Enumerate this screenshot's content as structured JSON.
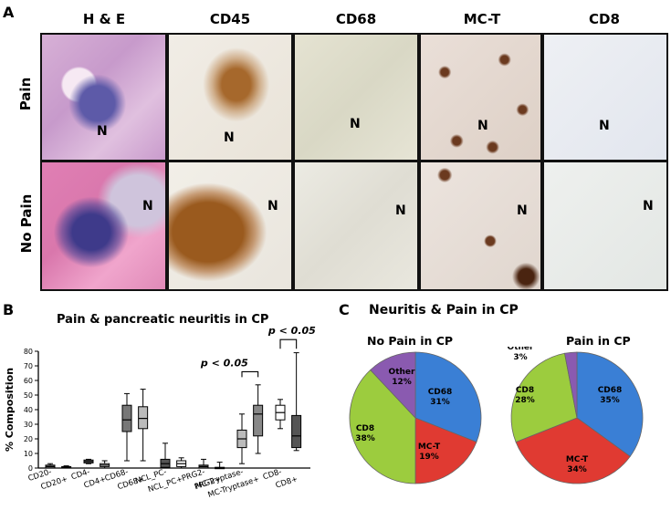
{
  "panelA": {
    "letter": "A",
    "columns": [
      "H & E",
      "CD45",
      "CD68",
      "MC-T",
      "CD8"
    ],
    "rows": [
      "Pain",
      "No Pain"
    ],
    "marker": "N"
  },
  "panelB": {
    "letter": "B",
    "title": "Pain & pancreatic neuritis in CP",
    "ylabel": "% Composition",
    "annotations": [
      "p < 0.05",
      "p < 0.05"
    ]
  },
  "panelC": {
    "letter": "C",
    "title": "Neuritis & Pain in CP",
    "pie1_title": "No Pain in CP",
    "pie2_title": "Pain in CP"
  },
  "chart_data": [
    {
      "type": "box",
      "title": "Pain & pancreatic neuritis in CP",
      "ylabel": "% Composition",
      "ylim": [
        0,
        80
      ],
      "yticks": [
        0,
        10,
        20,
        30,
        40,
        50,
        60,
        70,
        80
      ],
      "categories": [
        "CD20-",
        "CD20+",
        "CD4-",
        "CD4+",
        "CD68-",
        "CD68+",
        "NCL_PC-",
        "NCL_PC+",
        "PRG2-",
        "PRG2+",
        "MC-Tryptase-",
        "MC-Tryptase+",
        "CD8-",
        "CD8+"
      ],
      "boxes": [
        {
          "min": 0,
          "q1": 0,
          "median": 1,
          "q3": 2,
          "max": 3,
          "fill": "#777777"
        },
        {
          "min": 0,
          "q1": 0,
          "median": 0.5,
          "q3": 1,
          "max": 1.5,
          "fill": "#bbbbbb"
        },
        {
          "min": 3,
          "q1": 3.5,
          "median": 4.5,
          "q3": 5.5,
          "max": 6,
          "fill": "#777777"
        },
        {
          "min": 0,
          "q1": 1,
          "median": 2,
          "q3": 3,
          "max": 5,
          "fill": "#ffffff"
        },
        {
          "min": 5,
          "q1": 25,
          "median": 33,
          "q3": 43,
          "max": 51,
          "fill": "#777777"
        },
        {
          "min": 5,
          "q1": 27,
          "median": 34,
          "q3": 42,
          "max": 54,
          "fill": "#bbbbbb"
        },
        {
          "min": 0,
          "q1": 0.5,
          "median": 3,
          "q3": 6,
          "max": 17,
          "fill": "#555555"
        },
        {
          "min": 0,
          "q1": 1,
          "median": 3,
          "q3": 5,
          "max": 7,
          "fill": "#ffffff"
        },
        {
          "min": 0,
          "q1": 0,
          "median": 1,
          "q3": 2,
          "max": 6,
          "fill": "#777777"
        },
        {
          "min": 0,
          "q1": 0,
          "median": 0,
          "q3": 0.5,
          "max": 4,
          "fill": "#ffffff"
        },
        {
          "min": 3,
          "q1": 14,
          "median": 20,
          "q3": 26,
          "max": 37,
          "fill": "#bbbbbb"
        },
        {
          "min": 10,
          "q1": 22,
          "median": 37,
          "q3": 43,
          "max": 57,
          "fill": "#888888"
        },
        {
          "min": 27,
          "q1": 33,
          "median": 38,
          "q3": 43,
          "max": 47,
          "fill": "#ffffff"
        },
        {
          "min": 12,
          "q1": 14,
          "median": 22,
          "q3": 36,
          "max": 79,
          "fill": "#555555"
        }
      ]
    },
    {
      "type": "pie",
      "title": "No Pain in CP",
      "slices": [
        {
          "label": "CD68",
          "value": 31,
          "text": "31%",
          "color": "#3a7fd5"
        },
        {
          "label": "MC-T",
          "value": 19,
          "text": "19%",
          "color": "#e03a32"
        },
        {
          "label": "CD8",
          "value": 38,
          "text": "38%",
          "color": "#9ccc3e"
        },
        {
          "label": "Other",
          "value": 12,
          "text": "12%",
          "color": "#8a5ab0"
        }
      ]
    },
    {
      "type": "pie",
      "title": "Pain in CP",
      "slices": [
        {
          "label": "CD68",
          "value": 35,
          "text": "35%",
          "color": "#3a7fd5"
        },
        {
          "label": "MC-T",
          "value": 34,
          "text": "34%",
          "color": "#e03a32"
        },
        {
          "label": "CD8",
          "value": 28,
          "text": "28%",
          "color": "#9ccc3e"
        },
        {
          "label": "Other",
          "value": 3,
          "text": "3%",
          "color": "#8a5ab0"
        }
      ]
    }
  ]
}
